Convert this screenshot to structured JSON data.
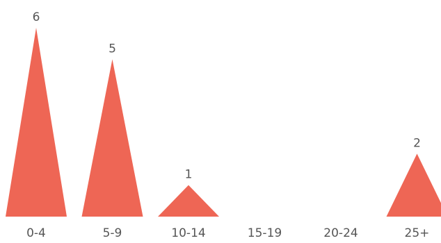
{
  "chart_data": {
    "type": "bar",
    "categories": [
      "0-4",
      "5-9",
      "10-14",
      "15-19",
      "20-24",
      "25+"
    ],
    "values": [
      6,
      5,
      1,
      0,
      0,
      2
    ],
    "data_labels": [
      "6",
      "5",
      "1",
      "",
      "",
      "2"
    ],
    "title": "",
    "xlabel": "",
    "ylabel": "",
    "ylim": [
      0,
      6
    ],
    "grid": false,
    "legend": "none",
    "mark_shape": "triangle",
    "colors": {
      "bar": "#ee6655",
      "text": "#555555",
      "background": "#ffffff"
    }
  }
}
